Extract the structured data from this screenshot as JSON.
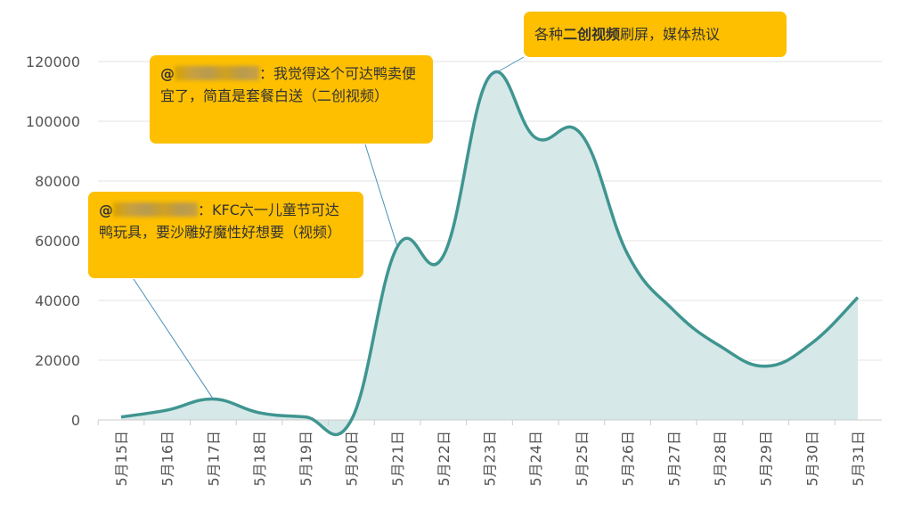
{
  "chart_data": {
    "type": "area",
    "title": "",
    "xlabel": "",
    "ylabel": "",
    "categories": [
      "5月15日",
      "5月16日",
      "5月17日",
      "5月18日",
      "5月19日",
      "5月20日",
      "5月21日",
      "5月22日",
      "5月23日",
      "5月24日",
      "5月25日",
      "5月26日",
      "5月27日",
      "5月28日",
      "5月29日",
      "5月30日",
      "5月31日"
    ],
    "values": [
      1000,
      3300,
      7000,
      2400,
      1000,
      0,
      58000,
      55000,
      115000,
      94500,
      95500,
      55500,
      36700,
      24800,
      18000,
      25700,
      41000
    ],
    "ylim": [
      0,
      120000
    ],
    "yticks": [
      "0",
      "20000",
      "40000",
      "60000",
      "80000",
      "100000",
      "120000"
    ],
    "grid": true,
    "smooth": true,
    "colors": {
      "line": "#3f9590",
      "fill": "#d6e8e8",
      "annotation": "#fdbf00"
    },
    "annotations": [
      {
        "category": "5月17日",
        "prefix": "@",
        "suffix": "：KFC六一儿童节可达鸭玩具，要沙雕好魔性好想要（视频）"
      },
      {
        "category": "5月21日",
        "prefix": "@",
        "suffix": "：我觉得这个可达鸭卖便宜了，简直是套餐白送（二创视频）"
      },
      {
        "category": "5月23日",
        "before": "各种",
        "bold": "二创视频",
        "after": "刷屏，媒体热议"
      }
    ]
  }
}
